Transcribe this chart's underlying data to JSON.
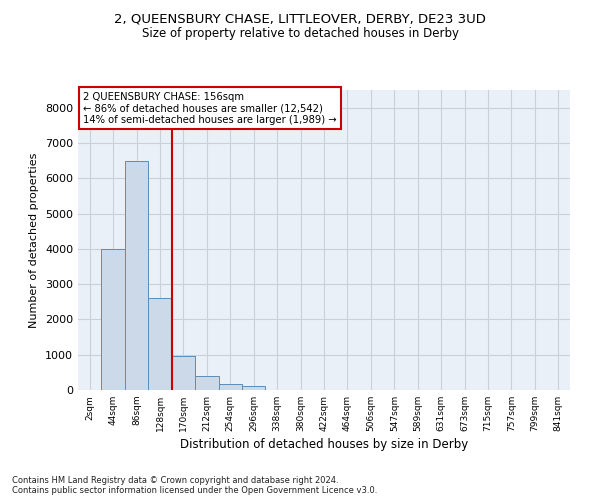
{
  "title_line1": "2, QUEENSBURY CHASE, LITTLEOVER, DERBY, DE23 3UD",
  "title_line2": "Size of property relative to detached houses in Derby",
  "xlabel": "Distribution of detached houses by size in Derby",
  "ylabel": "Number of detached properties",
  "footnote": "Contains HM Land Registry data © Crown copyright and database right 2024.\nContains public sector information licensed under the Open Government Licence v3.0.",
  "bar_labels": [
    "2sqm",
    "44sqm",
    "86sqm",
    "128sqm",
    "170sqm",
    "212sqm",
    "254sqm",
    "296sqm",
    "338sqm",
    "380sqm",
    "422sqm",
    "464sqm",
    "506sqm",
    "547sqm",
    "589sqm",
    "631sqm",
    "673sqm",
    "715sqm",
    "757sqm",
    "799sqm",
    "841sqm"
  ],
  "bar_values": [
    5,
    4000,
    6500,
    2600,
    950,
    400,
    170,
    100,
    0,
    0,
    0,
    0,
    0,
    0,
    0,
    0,
    0,
    0,
    0,
    0,
    0
  ],
  "bar_color": "#ccd9e8",
  "bar_edgecolor": "#5b8db8",
  "grid_color": "#c8d0dc",
  "background_color": "#eaf0f8",
  "vline_x": 3.5,
  "vline_color": "#cc0000",
  "annotation_text": "2 QUEENSBURY CHASE: 156sqm\n← 86% of detached houses are smaller (12,542)\n14% of semi-detached houses are larger (1,989) →",
  "annotation_box_edgecolor": "#cc0000",
  "annotation_box_facecolor": "white",
  "ylim": [
    0,
    8500
  ],
  "yticks": [
    0,
    1000,
    2000,
    3000,
    4000,
    5000,
    6000,
    7000,
    8000
  ]
}
